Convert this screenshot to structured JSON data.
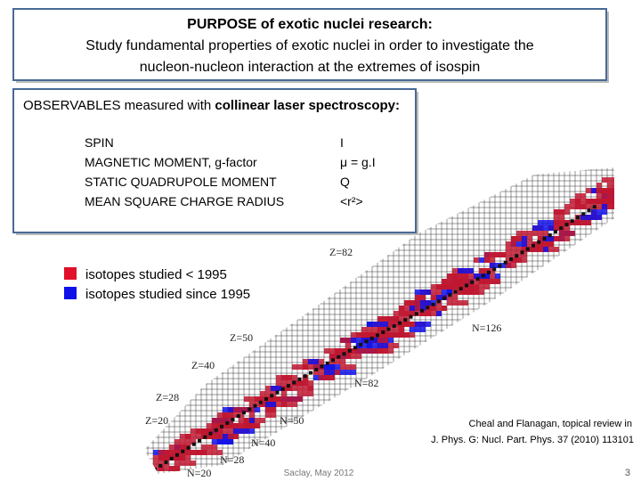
{
  "purpose": {
    "title": "PURPOSE of exotic nuclei research:",
    "lines": [
      "Study fundamental properties of exotic nuclei in order to investigate the",
      "nucleon-nucleon interaction at the extremes of isospin"
    ]
  },
  "observables": {
    "title": "OBSERVABLES measured with ",
    "title_bold": "collinear laser spectroscopy:",
    "items": [
      {
        "name": "SPIN",
        "symbol": "I"
      },
      {
        "name": "MAGNETIC MOMENT, g-factor",
        "symbol": "μ = g.I"
      },
      {
        "name": "STATIC QUADRUPOLE MOMENT",
        "symbol": "Q"
      },
      {
        "name": "MEAN SQUARE CHARGE RADIUS",
        "symbol": "<r²>"
      }
    ]
  },
  "legend": [
    {
      "label": "isotopes studied < 1995",
      "color": "#e0102a"
    },
    {
      "label": "isotopes studied since 1995",
      "color": "#1010e8"
    }
  ],
  "chart_labels": [
    "Z=82",
    "N=126",
    "Z=50",
    "Z=40",
    "N=82",
    "Z=28",
    "Z=20",
    "N=50",
    "N=40",
    "N=28",
    "N=20"
  ],
  "citation": [
    "Cheal and Flanagan, topical review in",
    "J. Phys. G: Nucl. Part. Phys. 37 (2010) 113101"
  ],
  "footer": "Saclay, May 2012",
  "page_number": "3"
}
